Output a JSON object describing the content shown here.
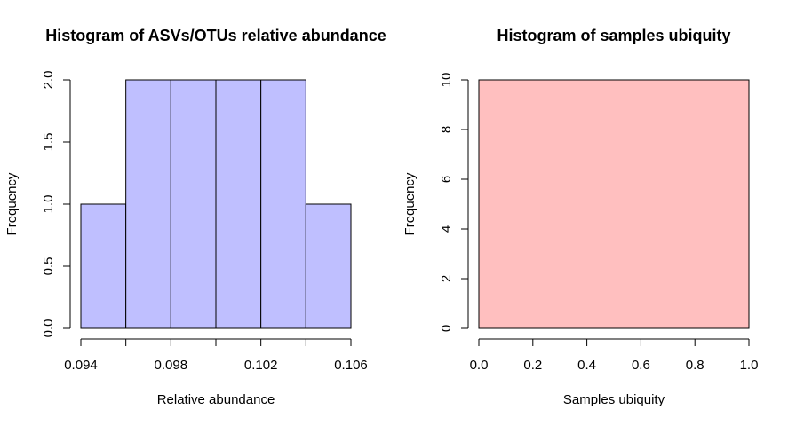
{
  "chart_data": [
    {
      "type": "bar",
      "title": "Histogram of ASVs/OTUs relative abundance",
      "xlabel": "Relative abundance",
      "ylabel": "Frequency",
      "bins": [
        {
          "start": 0.094,
          "end": 0.096,
          "count": 1
        },
        {
          "start": 0.096,
          "end": 0.098,
          "count": 2
        },
        {
          "start": 0.098,
          "end": 0.1,
          "count": 2
        },
        {
          "start": 0.1,
          "end": 0.102,
          "count": 2
        },
        {
          "start": 0.102,
          "end": 0.104,
          "count": 2
        },
        {
          "start": 0.104,
          "end": 0.106,
          "count": 1
        }
      ],
      "xlim": [
        0.094,
        0.106
      ],
      "ylim": [
        0,
        2
      ],
      "xticks": [
        0.094,
        0.096,
        0.098,
        0.1,
        0.102,
        0.104,
        0.106
      ],
      "xtick_labels": [
        "0.094",
        "",
        "0.098",
        "",
        "0.102",
        "",
        "0.106"
      ],
      "yticks": [
        0,
        0.5,
        1.0,
        1.5,
        2.0
      ],
      "ytick_labels": [
        "0.0",
        "0.5",
        "1.0",
        "1.5",
        "2.0"
      ],
      "bar_color": "#bfbfff",
      "grid": false
    },
    {
      "type": "bar",
      "title": "Histogram of samples ubiquity",
      "xlabel": "Samples ubiquity",
      "ylabel": "Frequency",
      "bins": [
        {
          "start": 0.0,
          "end": 1.0,
          "count": 10
        }
      ],
      "xlim": [
        0.0,
        1.0
      ],
      "ylim": [
        0,
        10
      ],
      "xticks": [
        0.0,
        0.2,
        0.4,
        0.6,
        0.8,
        1.0
      ],
      "xtick_labels": [
        "0.0",
        "0.2",
        "0.4",
        "0.6",
        "0.8",
        "1.0"
      ],
      "yticks": [
        0,
        2,
        4,
        6,
        8,
        10
      ],
      "ytick_labels": [
        "0",
        "2",
        "4",
        "6",
        "8",
        "10"
      ],
      "bar_color": "#ffbfbf",
      "grid": false
    }
  ]
}
